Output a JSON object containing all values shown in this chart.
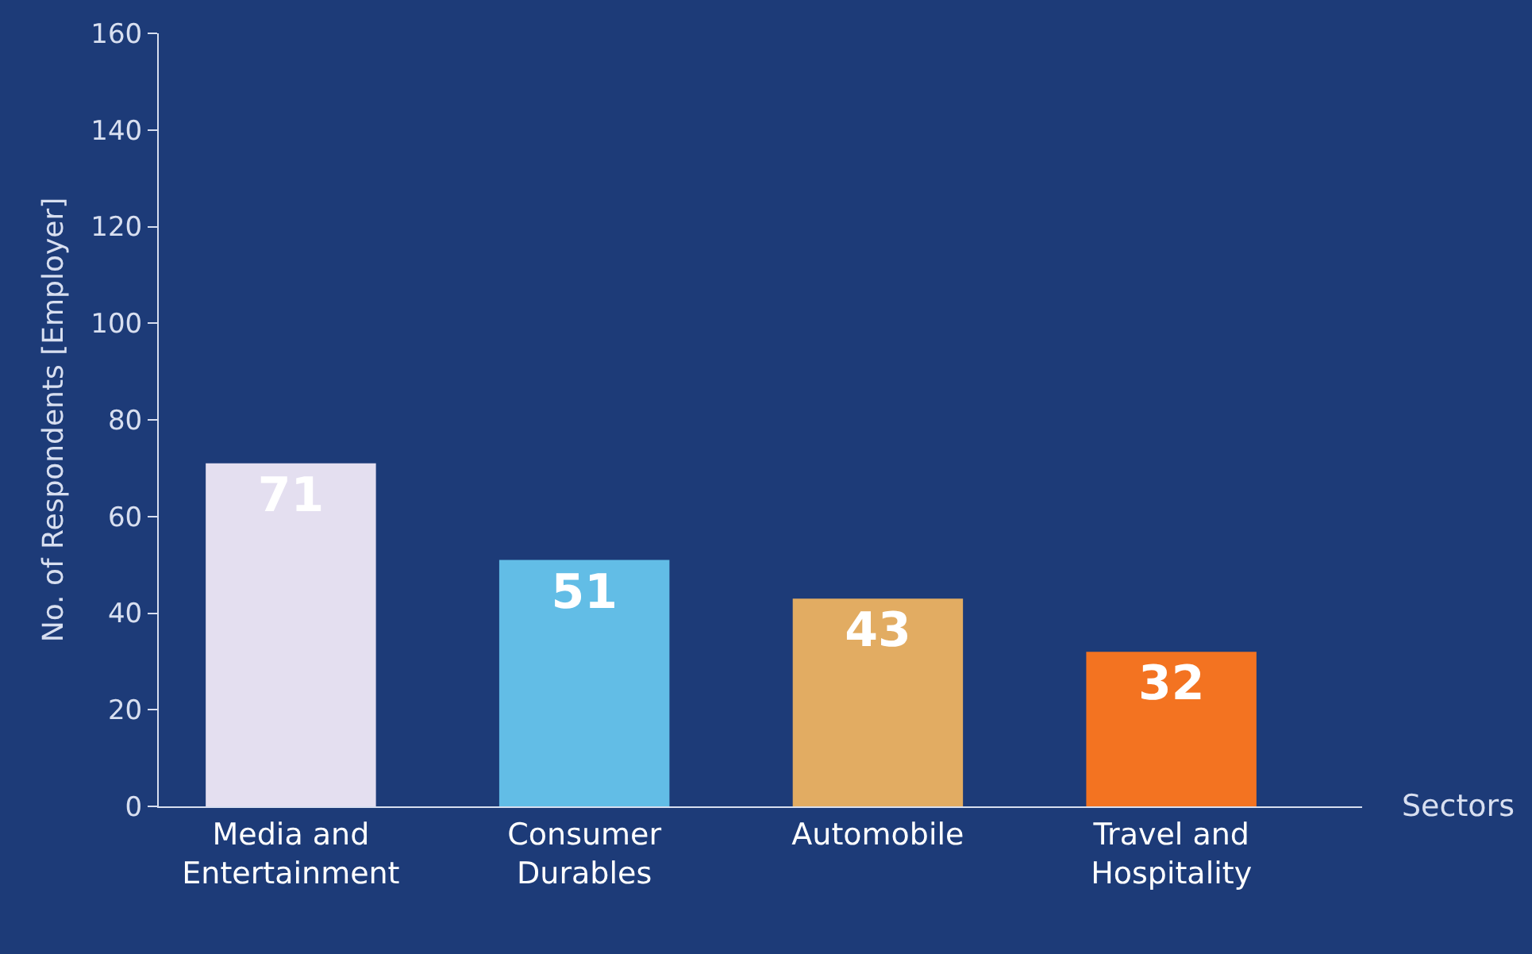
{
  "chart_data": {
    "type": "bar",
    "xlabel": "Sectors",
    "ylabel": "No. of Respondents [Employer]",
    "categories": [
      "Media and Entertainment",
      "Consumer Durables",
      "Automobile",
      "Travel and Hospitality"
    ],
    "values": [
      71,
      51,
      43,
      32
    ],
    "colors": [
      "#e4dff0",
      "#62bde6",
      "#e2ac62",
      "#f37321"
    ],
    "ylim": [
      0,
      160
    ],
    "yticks": [
      0,
      20,
      40,
      60,
      80,
      100,
      120,
      140,
      160
    ],
    "data_labels": true,
    "grid": false
  }
}
